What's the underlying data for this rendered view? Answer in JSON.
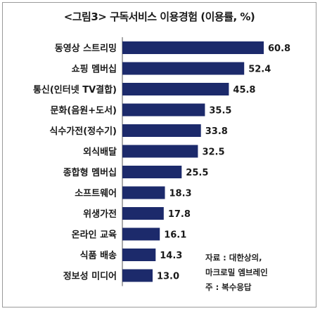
{
  "title": "<그림3> 구독서비스 이용경험 (이용률, %)",
  "source_lines": [
    "자료 : 대한상의,",
    "마크로밀 엠브레인",
    "주 : 복수응답"
  ],
  "colors": {
    "bar": "#1c2a6b",
    "axis": "#555555"
  },
  "chart_data": {
    "type": "bar",
    "orientation": "horizontal",
    "title": "<그림3> 구독서비스 이용경험 (이용률, %)",
    "categories": [
      "동영상 스트리밍",
      "쇼핑 멤버십",
      "통신(인터넷 TV결합)",
      "문화(음원+도서)",
      "식수가전(정수기)",
      "외식배달",
      "종합형 멤버십",
      "소프트웨어",
      "위생가전",
      "온라인 교육",
      "식품 배송",
      "정보성 미디어"
    ],
    "values": [
      60.8,
      52.4,
      45.8,
      35.5,
      33.8,
      32.5,
      25.5,
      18.3,
      17.8,
      16.1,
      14.3,
      13.0
    ],
    "value_labels": [
      "60.8",
      "52.4",
      "45.8",
      "35.5",
      "33.8",
      "32.5",
      "25.5",
      "18.3",
      "17.8",
      "16.1",
      "14.3",
      "13.0"
    ],
    "xlim": [
      0,
      60.8
    ],
    "grid": false,
    "legend": "none"
  }
}
